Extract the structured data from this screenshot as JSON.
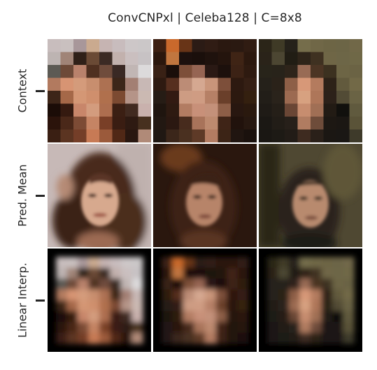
{
  "title": "ConvCNPxl | Celeba128 | C=8x8",
  "rows": [
    {
      "label": "Context"
    },
    {
      "label": "Pred. Mean"
    },
    {
      "label": "Linear Interp."
    }
  ],
  "columns": [
    {
      "context": [
        [
          "#c8bdbd",
          "#c9c0bf",
          "#a8979a",
          "#caaa8f",
          "#c6b4b2",
          "#c8bcbd",
          "#cdc7c8",
          "#cbc7c8"
        ],
        [
          "#bdb4b2",
          "#a08477",
          "#2f2018",
          "#6a4a35",
          "#3b2a24",
          "#c2b1ad",
          "#cabfbf",
          "#c7c2c4"
        ],
        [
          "#5c5a54",
          "#6d4a38",
          "#b9826c",
          "#4f3020",
          "#6f4c3c",
          "#3a2924",
          "#c1b6b4",
          "#dcdadb"
        ],
        [
          "#b27a5f",
          "#d79473",
          "#d49b7b",
          "#c88e6e",
          "#ad7152",
          "#3c2619",
          "#a37f73",
          "#c8b8b5"
        ],
        [
          "#3d2518",
          "#a56848",
          "#d49775",
          "#cf8f6d",
          "#b0704d",
          "#7c4a31",
          "#b59488",
          "#cbb9b2"
        ],
        [
          "#1b0c07",
          "#351a10",
          "#c8866a",
          "#d39c7e",
          "#ad6e4f",
          "#3b1f13",
          "#412a20",
          "#c9b1ad"
        ],
        [
          "#2b130b",
          "#4a2819",
          "#7c4b35",
          "#c58464",
          "#793f27",
          "#3a1d12",
          "#2e1a12",
          "#47301f"
        ],
        [
          "#3a1f13",
          "#5b3421",
          "#743e28",
          "#c77a55",
          "#9b5a3b",
          "#502816",
          "#291710",
          "#b08a78"
        ]
      ]
    },
    {
      "context": [
        [
          "#3d2012",
          "#c9692c",
          "#683417",
          "#2b1b15",
          "#301c14",
          "#2a1810",
          "#2a1911",
          "#301c12"
        ],
        [
          "#2b170d",
          "#c1763f",
          "#1c100d",
          "#1a0f0b",
          "#1f120d",
          "#24140d",
          "#3f2415",
          "#2b180e"
        ],
        [
          "#392115",
          "#1a0e0a",
          "#7d4f39",
          "#966553",
          "#2a1914",
          "#1c100c",
          "#3c2215",
          "#2e1a10"
        ],
        [
          "#2e1a11",
          "#562f1f",
          "#bc8c76",
          "#d5a891",
          "#c9957a",
          "#7d4f3a",
          "#2d1910",
          "#351f14"
        ],
        [
          "#261c15",
          "#321a12",
          "#cd9c83",
          "#cf9c83",
          "#b68066",
          "#6a3f2a",
          "#2c190f",
          "#34200f"
        ],
        [
          "#1f150f",
          "#2e1a11",
          "#b27c62",
          "#c89079",
          "#c4917a",
          "#8d5e47",
          "#281710",
          "#2a190e"
        ],
        [
          "#221812",
          "#2b1811",
          "#472b1d",
          "#a8735a",
          "#bd8a6f",
          "#3f2417",
          "#21120c",
          "#271810"
        ],
        [
          "#201813",
          "#3b261a",
          "#4a3020",
          "#5e3a27",
          "#b37c62",
          "#3c2416",
          "#201510",
          "#1a110d"
        ]
      ]
    },
    {
      "context": [
        [
          "#2b2518",
          "#3f3a26",
          "#25211a",
          "#756d4b",
          "#706747",
          "#6d6545",
          "#6c6546",
          "#716848"
        ],
        [
          "#2a2319",
          "#4c4632",
          "#211d14",
          "#2e2419",
          "#3f3121",
          "#6f6646",
          "#6d6647",
          "#6f6847"
        ],
        [
          "#28241a",
          "#28231a",
          "#2e241a",
          "#986b55",
          "#4c3524",
          "#3c3120",
          "#6d6545",
          "#6b6344"
        ],
        [
          "#25211a",
          "#2a2219",
          "#8e5f47",
          "#d79878",
          "#b47b5e",
          "#2d2218",
          "#625a3d",
          "#726947"
        ],
        [
          "#221e18",
          "#2a231b",
          "#9c6a51",
          "#d7a180",
          "#ae7659",
          "#2c2119",
          "#524b35",
          "#6a6344"
        ],
        [
          "#1f1b16",
          "#251f18",
          "#6a4635",
          "#c78d6f",
          "#a06f55",
          "#221b14",
          "#11100d",
          "#605a3e"
        ],
        [
          "#1b1814",
          "#221d17",
          "#27201a",
          "#b07c61",
          "#6e4c3a",
          "#1d1813",
          "#1b1713",
          "#5a5338"
        ],
        [
          "#1a1713",
          "#1d1a15",
          "#221c17",
          "#3e2b20",
          "#2a2019",
          "#1b1713",
          "#1a1714",
          "#3e3a2a"
        ]
      ]
    }
  ]
}
